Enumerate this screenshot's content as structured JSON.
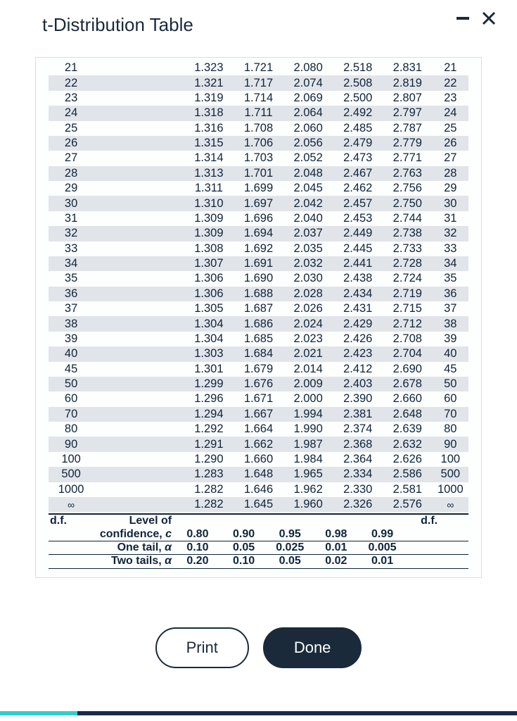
{
  "window": {
    "title": "t-Distribution Table"
  },
  "buttons": {
    "print": "Print",
    "done": "Done"
  },
  "progress": {
    "percent": 15,
    "track_color": "#1a2a4a",
    "fill_color": "#2fd0c8"
  },
  "theme": {
    "text_color": "#10243a",
    "shade_color": "#e1e5ea",
    "panel_border": "#d8dde2",
    "title_color": "#1a2a3a",
    "btn_dark": "#1a2a3a",
    "font_size_table": 16.5,
    "font_size_title": 26,
    "font_size_btn": 22
  },
  "table": {
    "type": "table",
    "shade_even": true,
    "columns": [
      "d.f.",
      "",
      "c1",
      "c2",
      "c3",
      "c4",
      "c5",
      "d.f."
    ],
    "rows": [
      {
        "df": "21",
        "v": [
          "1.323",
          "1.721",
          "2.080",
          "2.518",
          "2.831"
        ]
      },
      {
        "df": "22",
        "v": [
          "1.321",
          "1.717",
          "2.074",
          "2.508",
          "2.819"
        ]
      },
      {
        "df": "23",
        "v": [
          "1.319",
          "1.714",
          "2.069",
          "2.500",
          "2.807"
        ]
      },
      {
        "df": "24",
        "v": [
          "1.318",
          "1.711",
          "2.064",
          "2.492",
          "2.797"
        ]
      },
      {
        "df": "25",
        "v": [
          "1.316",
          "1.708",
          "2.060",
          "2.485",
          "2.787"
        ]
      },
      {
        "df": "26",
        "v": [
          "1.315",
          "1.706",
          "2.056",
          "2.479",
          "2.779"
        ]
      },
      {
        "df": "27",
        "v": [
          "1.314",
          "1.703",
          "2.052",
          "2.473",
          "2.771"
        ]
      },
      {
        "df": "28",
        "v": [
          "1.313",
          "1.701",
          "2.048",
          "2.467",
          "2.763"
        ]
      },
      {
        "df": "29",
        "v": [
          "1.311",
          "1.699",
          "2.045",
          "2.462",
          "2.756"
        ]
      },
      {
        "df": "30",
        "v": [
          "1.310",
          "1.697",
          "2.042",
          "2.457",
          "2.750"
        ]
      },
      {
        "df": "31",
        "v": [
          "1.309",
          "1.696",
          "2.040",
          "2.453",
          "2.744"
        ]
      },
      {
        "df": "32",
        "v": [
          "1.309",
          "1.694",
          "2.037",
          "2.449",
          "2.738"
        ]
      },
      {
        "df": "33",
        "v": [
          "1.308",
          "1.692",
          "2.035",
          "2.445",
          "2.733"
        ]
      },
      {
        "df": "34",
        "v": [
          "1.307",
          "1.691",
          "2.032",
          "2.441",
          "2.728"
        ]
      },
      {
        "df": "35",
        "v": [
          "1.306",
          "1.690",
          "2.030",
          "2.438",
          "2.724"
        ]
      },
      {
        "df": "36",
        "v": [
          "1.306",
          "1.688",
          "2.028",
          "2.434",
          "2.719"
        ]
      },
      {
        "df": "37",
        "v": [
          "1.305",
          "1.687",
          "2.026",
          "2.431",
          "2.715"
        ]
      },
      {
        "df": "38",
        "v": [
          "1.304",
          "1.686",
          "2.024",
          "2.429",
          "2.712"
        ]
      },
      {
        "df": "39",
        "v": [
          "1.304",
          "1.685",
          "2.023",
          "2.426",
          "2.708"
        ]
      },
      {
        "df": "40",
        "v": [
          "1.303",
          "1.684",
          "2.021",
          "2.423",
          "2.704"
        ]
      },
      {
        "df": "45",
        "v": [
          "1.301",
          "1.679",
          "2.014",
          "2.412",
          "2.690"
        ]
      },
      {
        "df": "50",
        "v": [
          "1.299",
          "1.676",
          "2.009",
          "2.403",
          "2.678"
        ]
      },
      {
        "df": "60",
        "v": [
          "1.296",
          "1.671",
          "2.000",
          "2.390",
          "2.660"
        ]
      },
      {
        "df": "70",
        "v": [
          "1.294",
          "1.667",
          "1.994",
          "2.381",
          "2.648"
        ]
      },
      {
        "df": "80",
        "v": [
          "1.292",
          "1.664",
          "1.990",
          "2.374",
          "2.639"
        ]
      },
      {
        "df": "90",
        "v": [
          "1.291",
          "1.662",
          "1.987",
          "2.368",
          "2.632"
        ]
      },
      {
        "df": "100",
        "v": [
          "1.290",
          "1.660",
          "1.984",
          "2.364",
          "2.626"
        ]
      },
      {
        "df": "500",
        "v": [
          "1.283",
          "1.648",
          "1.965",
          "2.334",
          "2.586"
        ]
      },
      {
        "df": "1000",
        "v": [
          "1.282",
          "1.646",
          "1.962",
          "2.330",
          "2.581"
        ]
      },
      {
        "df": "∞",
        "v": [
          "1.282",
          "1.645",
          "1.960",
          "2.326",
          "2.576"
        ],
        "inf": true
      }
    ],
    "footer": {
      "df_label": "d.f.",
      "rows": [
        {
          "label_html": "Level of",
          "v": [
            "",
            "",
            "",
            "",
            ""
          ],
          "no_rule": true,
          "continues": true
        },
        {
          "label_html": "confidence, <span class='it'>c</span>",
          "v": [
            "0.80",
            "0.90",
            "0.95",
            "0.98",
            "0.99"
          ],
          "rule": true
        },
        {
          "label_html": "One tail, <span class='it'>α</span>",
          "v": [
            "0.10",
            "0.05",
            "0.025",
            "0.01",
            "0.005"
          ],
          "rule": true
        },
        {
          "label_html": "Two tails, <span class='it'>α</span>",
          "v": [
            "0.20",
            "0.10",
            "0.05",
            "0.02",
            "0.01"
          ],
          "rule": true
        }
      ]
    }
  }
}
